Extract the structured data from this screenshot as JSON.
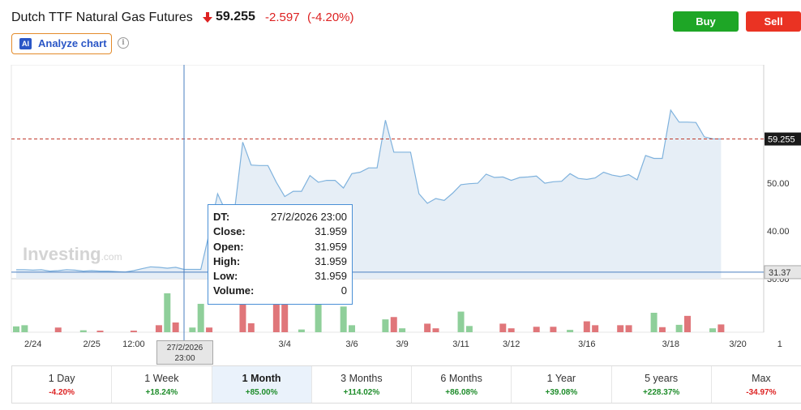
{
  "header": {
    "title": "Dutch TTF Natural Gas Futures",
    "price": "59.255",
    "change": "-2.597",
    "change_pct": "(-4.20%)",
    "buy_label": "Buy",
    "sell_label": "Sell",
    "analyze_label": "Analyze chart",
    "ai_badge": "AI",
    "info_symbol": "i"
  },
  "colors": {
    "up": "#1e8c2a",
    "down": "#dd2222",
    "line": "#7fb2dd",
    "area": "#e6eef6",
    "accent": "#2a56c6",
    "buy": "#1ea626",
    "sell": "#ea3323"
  },
  "tooltip": {
    "rows": [
      {
        "key": "DT:",
        "value": "27/2/2026 23:00"
      },
      {
        "key": "Close:",
        "value": "31.959"
      },
      {
        "key": "Open:",
        "value": "31.959"
      },
      {
        "key": "High:",
        "value": "31.959"
      },
      {
        "key": "Low:",
        "value": "31.959"
      },
      {
        "key": "Volume:",
        "value": "0"
      }
    ]
  },
  "crosshair": {
    "date_line1": "27/2/2026",
    "date_line2": "23:00",
    "price_label": "31.37"
  },
  "watermark": "Investing",
  "watermark_suffix": ".com",
  "chart_data": {
    "type": "area",
    "y_range": [
      30,
      68
    ],
    "y_ticks": [
      30,
      40,
      50
    ],
    "y_tick_labels": [
      "30.00",
      "40.00",
      "50.00"
    ],
    "current_price": 59.255,
    "current_price_label": "59.255",
    "crosshair_value": 31.37,
    "x_tick_labels": [
      "2/24",
      "2/25",
      "12:00",
      "3/4",
      "3/6",
      "3/9",
      "3/11",
      "3/12",
      "3/16",
      "3/18",
      "3/20",
      "1"
    ],
    "x_tick_index": [
      2,
      9,
      14,
      32,
      40,
      46,
      53,
      59,
      68,
      78,
      86,
      91
    ],
    "values": [
      31.9,
      31.9,
      31.8,
      31.9,
      31.6,
      31.7,
      31.9,
      31.8,
      31.6,
      31.7,
      31.6,
      31.6,
      31.5,
      31.4,
      31.7,
      32.1,
      32.5,
      32.4,
      32.2,
      32.4,
      31.959,
      31.959,
      31.959,
      39.5,
      47.8,
      44.0,
      44.0,
      58.6,
      53.8,
      53.7,
      53.7,
      50.2,
      47.2,
      48.3,
      48.3,
      51.6,
      50.2,
      50.6,
      50.6,
      49.0,
      52.0,
      52.3,
      53.2,
      53.2,
      63.2,
      56.5,
      56.5,
      56.5,
      47.8,
      45.8,
      46.8,
      46.4,
      47.9,
      49.7,
      49.9,
      50.0,
      51.9,
      51.2,
      51.3,
      50.6,
      51.2,
      51.3,
      51.5,
      50.0,
      50.3,
      50.4,
      52.0,
      51.0,
      50.8,
      51.1,
      52.3,
      51.7,
      51.4,
      51.8,
      50.7,
      55.8,
      55.2,
      55.2,
      65.3,
      62.8,
      62.8,
      62.7,
      59.7,
      59.3,
      59.255
    ],
    "volume": [
      {
        "i": 0,
        "v": 0.15,
        "d": "up"
      },
      {
        "i": 1,
        "v": 0.18,
        "d": "up"
      },
      {
        "i": 5,
        "v": 0.12,
        "d": "down"
      },
      {
        "i": 8,
        "v": 0.05,
        "d": "up"
      },
      {
        "i": 10,
        "v": 0.04,
        "d": "down"
      },
      {
        "i": 14,
        "v": 0.04,
        "d": "down"
      },
      {
        "i": 17,
        "v": 0.18,
        "d": "down"
      },
      {
        "i": 18,
        "v": 1.0,
        "d": "up"
      },
      {
        "i": 19,
        "v": 0.25,
        "d": "down"
      },
      {
        "i": 21,
        "v": 0.12,
        "d": "up"
      },
      {
        "i": 22,
        "v": 0.73,
        "d": "up"
      },
      {
        "i": 23,
        "v": 0.12,
        "d": "down"
      },
      {
        "i": 27,
        "v": 0.78,
        "d": "down"
      },
      {
        "i": 28,
        "v": 0.23,
        "d": "down"
      },
      {
        "i": 31,
        "v": 0.78,
        "d": "down"
      },
      {
        "i": 32,
        "v": 0.75,
        "d": "down"
      },
      {
        "i": 34,
        "v": 0.07,
        "d": "up"
      },
      {
        "i": 36,
        "v": 0.8,
        "d": "up"
      },
      {
        "i": 39,
        "v": 0.66,
        "d": "up"
      },
      {
        "i": 40,
        "v": 0.18,
        "d": "up"
      },
      {
        "i": 44,
        "v": 0.33,
        "d": "up"
      },
      {
        "i": 45,
        "v": 0.39,
        "d": "down"
      },
      {
        "i": 46,
        "v": 0.1,
        "d": "up"
      },
      {
        "i": 49,
        "v": 0.22,
        "d": "down"
      },
      {
        "i": 50,
        "v": 0.1,
        "d": "down"
      },
      {
        "i": 53,
        "v": 0.53,
        "d": "up"
      },
      {
        "i": 54,
        "v": 0.16,
        "d": "up"
      },
      {
        "i": 58,
        "v": 0.22,
        "d": "down"
      },
      {
        "i": 59,
        "v": 0.1,
        "d": "down"
      },
      {
        "i": 62,
        "v": 0.14,
        "d": "down"
      },
      {
        "i": 64,
        "v": 0.14,
        "d": "down"
      },
      {
        "i": 66,
        "v": 0.06,
        "d": "up"
      },
      {
        "i": 68,
        "v": 0.28,
        "d": "down"
      },
      {
        "i": 69,
        "v": 0.18,
        "d": "down"
      },
      {
        "i": 72,
        "v": 0.18,
        "d": "down"
      },
      {
        "i": 73,
        "v": 0.18,
        "d": "down"
      },
      {
        "i": 76,
        "v": 0.5,
        "d": "up"
      },
      {
        "i": 77,
        "v": 0.13,
        "d": "down"
      },
      {
        "i": 79,
        "v": 0.19,
        "d": "up"
      },
      {
        "i": 80,
        "v": 0.42,
        "d": "down"
      },
      {
        "i": 83,
        "v": 0.1,
        "d": "up"
      },
      {
        "i": 84,
        "v": 0.2,
        "d": "down"
      }
    ]
  },
  "periods": [
    {
      "label": "1 Day",
      "change": "-4.20%",
      "dir": "neg",
      "active": false
    },
    {
      "label": "1 Week",
      "change": "+18.24%",
      "dir": "pos",
      "active": false
    },
    {
      "label": "1 Month",
      "change": "+85.00%",
      "dir": "pos",
      "active": true
    },
    {
      "label": "3 Months",
      "change": "+114.02%",
      "dir": "pos",
      "active": false
    },
    {
      "label": "6 Months",
      "change": "+86.08%",
      "dir": "pos",
      "active": false
    },
    {
      "label": "1 Year",
      "change": "+39.08%",
      "dir": "pos",
      "active": false
    },
    {
      "label": "5 years",
      "change": "+228.37%",
      "dir": "pos",
      "active": false
    },
    {
      "label": "Max",
      "change": "-34.97%",
      "dir": "neg",
      "active": false
    }
  ]
}
